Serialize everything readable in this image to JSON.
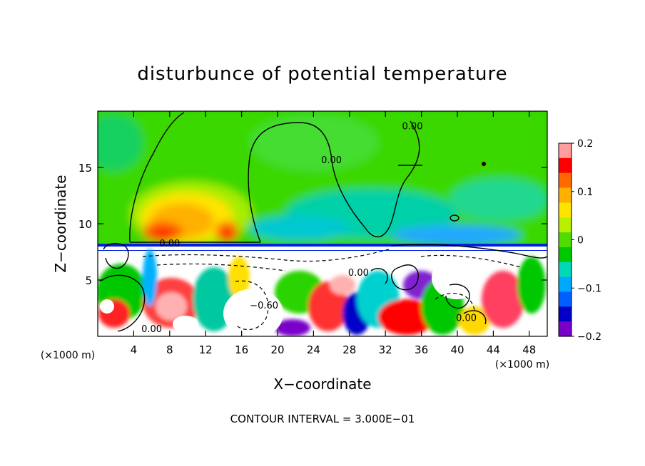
{
  "chart_data": {
    "type": "heatmap",
    "title": "disturbunce of potential temperature",
    "xlabel": "X−coordinate",
    "ylabel": "Z−coordinate",
    "x_unit": "(×1000 m)",
    "x_unit_right": "(×1000 m)",
    "xlim": [
      0,
      50
    ],
    "ylim": [
      0,
      20
    ],
    "x_ticks": [
      4,
      8,
      12,
      16,
      20,
      24,
      28,
      32,
      36,
      40,
      44,
      48
    ],
    "y_ticks": [
      5,
      10,
      15
    ],
    "colorbar": {
      "range": [
        -0.2,
        0.2
      ],
      "tick_values": [
        0.2,
        0.1,
        0,
        -0.1,
        -0.2
      ],
      "tick_labels": [
        "0.2",
        "0.1",
        "0",
        "−0.1",
        "−0.2"
      ],
      "colors": [
        "#ff9c9c",
        "#ff0000",
        "#ff6a00",
        "#ffb000",
        "#ffe400",
        "#b8f000",
        "#50dc00",
        "#00c800",
        "#00d8b8",
        "#00a8ff",
        "#0060ff",
        "#0000c8",
        "#7800c8"
      ]
    },
    "contour_labels": [
      {
        "text": "0.00",
        "x": 8.0,
        "z": 8.1
      },
      {
        "text": "0.00",
        "x": 26.0,
        "z": 15.5
      },
      {
        "text": "0.00",
        "x": 35.0,
        "z": 18.5
      },
      {
        "text": "0.00",
        "x": 29.0,
        "z": 5.5
      },
      {
        "text": "0.00",
        "x": 41.0,
        "z": 1.5
      },
      {
        "text": "−0.60",
        "x": 18.5,
        "z": 2.6
      },
      {
        "text": "0.00",
        "x": 6.0,
        "z": 0.5
      }
    ],
    "contour_interval_text": "CONTOUR INTERVAL =  3.000E−01",
    "grid": false
  }
}
